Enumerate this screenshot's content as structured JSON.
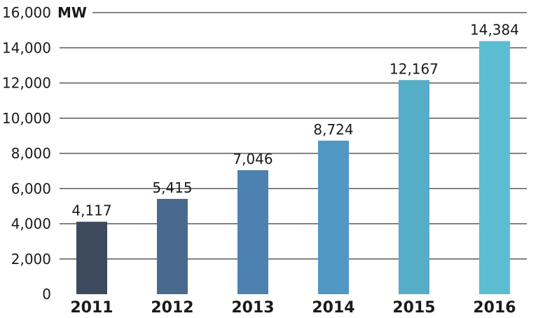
{
  "chart_data": {
    "type": "bar",
    "title": "",
    "xlabel": "",
    "ylabel": "",
    "unit": "MW",
    "categories": [
      "2011",
      "2012",
      "2013",
      "2014",
      "2015",
      "2016"
    ],
    "values": [
      4117,
      5415,
      7046,
      8724,
      12167,
      14384
    ],
    "value_labels": [
      "4,117",
      "5,415",
      "7,046",
      "8,724",
      "12,167",
      "14,384"
    ],
    "ylim": [
      0,
      16000
    ],
    "yticks": [
      0,
      2000,
      4000,
      6000,
      8000,
      10000,
      12000,
      14000,
      16000
    ],
    "ytick_labels": [
      "0",
      "2,000",
      "4,000",
      "6,000",
      "8,000",
      "10,000",
      "12,000",
      "14,000",
      "16,000"
    ],
    "grid": true,
    "legend": "none",
    "bar_colors": [
      "#3d4a5e",
      "#486a8e",
      "#4c82ad",
      "#5097c3",
      "#55adc8",
      "#5cbdd2"
    ]
  }
}
